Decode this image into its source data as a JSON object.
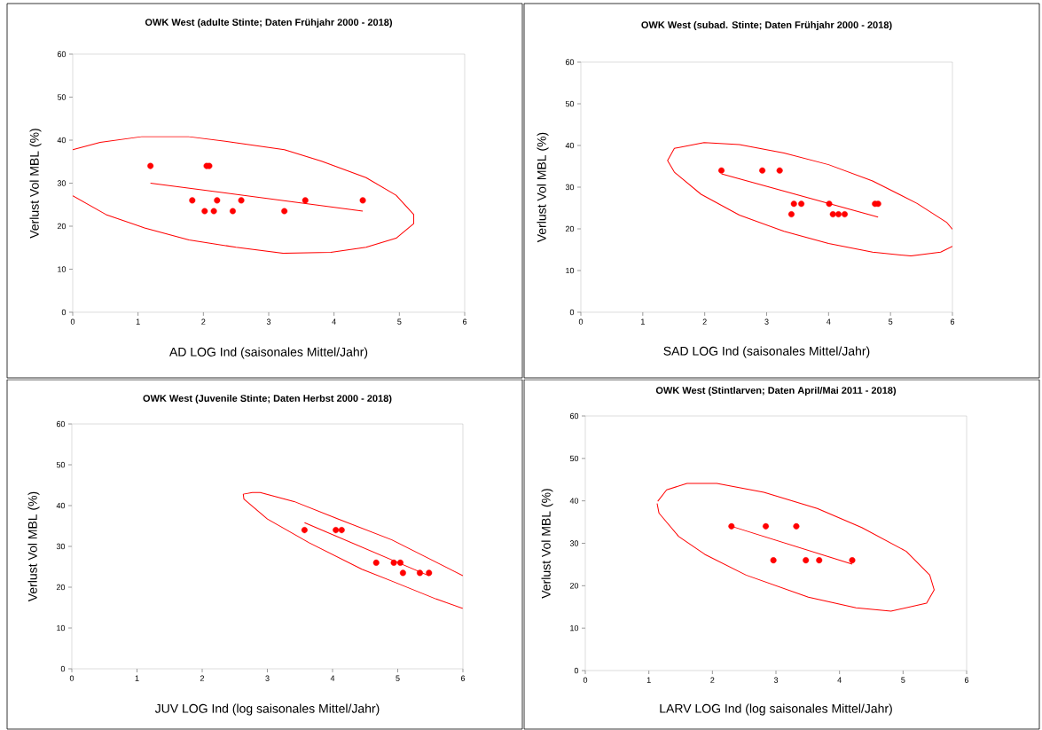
{
  "chart_data": [
    {
      "type": "scatter",
      "title": "OWK West (adulte Stinte; Daten Frühjahr 2000 - 2018)",
      "xlabel": "AD LOG Ind (saisonales Mittel/Jahr)",
      "ylabel": "Verlust Vol MBL (%)",
      "xlim": [
        0,
        6
      ],
      "ylim": [
        0,
        60
      ],
      "xticks": [
        0,
        1,
        2,
        3,
        4,
        5,
        6
      ],
      "yticks": [
        0,
        10,
        20,
        30,
        40,
        50,
        60
      ],
      "series": [
        {
          "type": "scatter",
          "marker": "circle",
          "color": "#ff0000",
          "x": [
            1.19,
            1.83,
            2.02,
            2.05,
            2.09,
            2.16,
            2.21,
            2.45,
            2.58,
            3.24,
            3.56,
            4.44
          ],
          "values": [
            34,
            26,
            23.5,
            34,
            34,
            23.5,
            26,
            23.5,
            26,
            23.5,
            26,
            26
          ]
        },
        {
          "type": "line",
          "marker": "none",
          "color": "#ff0000",
          "x": [
            1.19,
            4.44
          ],
          "values": [
            30.0,
            23.5
          ]
        },
        {
          "type": "line",
          "marker": "none",
          "color": "#ff0000",
          "x": [
            0,
            0.42,
            1.05,
            1.78,
            2.5,
            3.24,
            3.81,
            4.49,
            4.95,
            5.22,
            5.22,
            4.95,
            4.49,
            3.95,
            3.22,
            2.5,
            1.78,
            1.1,
            0.51,
            0
          ],
          "values": [
            37.8,
            39.5,
            40.8,
            40.8,
            39.4,
            37.8,
            35.1,
            31.3,
            27.2,
            22.7,
            20.6,
            17.2,
            15.1,
            13.9,
            13.7,
            15.1,
            16.8,
            19.6,
            22.7,
            27.1
          ]
        }
      ]
    },
    {
      "type": "scatter",
      "title": "OWK West (subad. Stinte; Daten Frühjahr 2000 - 2018)",
      "xlabel": "SAD LOG Ind (saisonales Mittel/Jahr)",
      "ylabel": "Verlust Vol MBL (%)",
      "xlim": [
        0,
        6
      ],
      "ylim": [
        0,
        60
      ],
      "xticks": [
        0,
        1,
        2,
        3,
        4,
        5,
        6
      ],
      "yticks": [
        0,
        10,
        20,
        30,
        40,
        50,
        60
      ],
      "series": [
        {
          "type": "scatter",
          "marker": "circle",
          "color": "#ff0000",
          "x": [
            2.27,
            2.93,
            3.21,
            3.4,
            3.44,
            3.56,
            4.01,
            4.07,
            4.16,
            4.26,
            4.75,
            4.8
          ],
          "values": [
            34,
            34,
            34,
            23.5,
            26,
            26,
            26,
            23.5,
            23.5,
            23.5,
            26,
            26
          ]
        },
        {
          "type": "line",
          "marker": "none",
          "color": "#ff0000",
          "x": [
            2.27,
            4.8
          ],
          "values": [
            33.2,
            22.8
          ]
        },
        {
          "type": "line",
          "marker": "none",
          "color": "#ff0000",
          "x": [
            6.0,
            5.91,
            5.43,
            4.71,
            4.0,
            3.28,
            2.56,
            1.99,
            1.51,
            1.4,
            1.51,
            1.94,
            2.56,
            3.28,
            4.0,
            4.71,
            5.33,
            5.81,
            6.0
          ],
          "values": [
            19.9,
            21.5,
            26.1,
            31.5,
            35.4,
            38.2,
            40.2,
            40.7,
            39.3,
            36.4,
            33.6,
            28.3,
            23.3,
            19.4,
            16.5,
            14.4,
            13.5,
            14.4,
            15.8
          ]
        }
      ]
    },
    {
      "type": "scatter",
      "title": "OWK West (Juvenile Stinte; Daten Herbst 2000 - 2018)",
      "xlabel": "JUV LOG Ind (log saisonales Mittel/Jahr)",
      "ylabel": "Verlust Vol MBL (%)",
      "xlim": [
        0,
        6
      ],
      "ylim": [
        0,
        60
      ],
      "xticks": [
        0,
        1,
        2,
        3,
        4,
        5,
        6
      ],
      "yticks": [
        0,
        10,
        20,
        30,
        40,
        50,
        60
      ],
      "series": [
        {
          "type": "scatter",
          "marker": "circle",
          "color": "#ff0000",
          "x": [
            3.57,
            4.05,
            4.14,
            4.67,
            4.94,
            5.04,
            5.08,
            5.34,
            5.48
          ],
          "values": [
            34,
            34,
            34,
            26,
            26,
            26,
            23.5,
            23.5,
            23.5
          ]
        },
        {
          "type": "line",
          "marker": "none",
          "color": "#ff0000",
          "x": [
            3.57,
            5.48
          ],
          "values": [
            35.8,
            22.8
          ]
        },
        {
          "type": "line",
          "marker": "none",
          "color": "#ff0000",
          "x": [
            6.0,
            4.91,
            4.09,
            3.41,
            2.89,
            2.77,
            2.63,
            2.64,
            3.0,
            3.64,
            4.45,
            4.91,
            5.59,
            6.0
          ],
          "values": [
            22.8,
            31.6,
            36.7,
            41.0,
            43.2,
            43.2,
            42.8,
            41.6,
            36.7,
            30.9,
            24.4,
            21.5,
            17.1,
            14.8
          ]
        }
      ]
    },
    {
      "type": "scatter",
      "title": "OWK West (Stintlarven; Daten April/Mai 2011 - 2018)",
      "xlabel": "LARV LOG Ind (log saisonales Mittel/Jahr)",
      "ylabel": "Verlust Vol MBL (%)",
      "xlim": [
        0,
        6
      ],
      "ylim": [
        0,
        60
      ],
      "xticks": [
        0,
        1,
        2,
        3,
        4,
        5,
        6
      ],
      "yticks": [
        0,
        10,
        20,
        30,
        40,
        50,
        60
      ],
      "series": [
        {
          "type": "scatter",
          "marker": "circle",
          "color": "#ff0000",
          "x": [
            2.3,
            2.84,
            2.96,
            3.32,
            3.47,
            3.68,
            4.2
          ],
          "values": [
            34,
            34,
            26,
            34,
            26,
            26,
            26
          ]
        },
        {
          "type": "line",
          "marker": "none",
          "color": "#ff0000",
          "x": [
            2.3,
            4.2
          ],
          "values": [
            34.0,
            25.1
          ]
        },
        {
          "type": "line",
          "marker": "none",
          "color": "#ff0000",
          "x": [
            1.14,
            1.28,
            1.6,
            2.07,
            2.81,
            3.65,
            4.35,
            5.05,
            5.42,
            5.49,
            5.37,
            4.81,
            4.26,
            3.51,
            2.53,
            1.88,
            1.47,
            1.16,
            1.13
          ],
          "values": [
            39.9,
            42.6,
            44.1,
            44.1,
            42.0,
            38.2,
            33.7,
            28.1,
            22.5,
            19.0,
            15.9,
            14.0,
            14.8,
            17.3,
            22.5,
            27.4,
            31.6,
            37.1,
            39.4
          ]
        }
      ]
    }
  ]
}
